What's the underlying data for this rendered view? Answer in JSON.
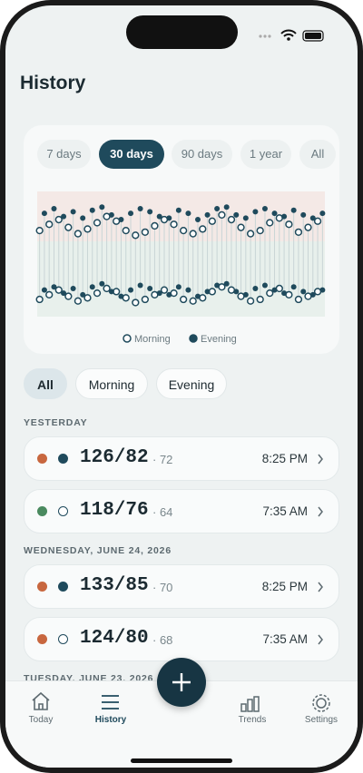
{
  "header": {
    "title": "History"
  },
  "range_tabs": {
    "items": [
      "7 days",
      "30 days",
      "90 days",
      "1 year",
      "All"
    ],
    "selected": 1
  },
  "chart_data": {
    "type": "dot-range",
    "ylim": [
      65,
      145
    ],
    "series": [
      {
        "name": "Morning",
        "color": "#1f4a5c",
        "fill": "hollow",
        "systolic": [
          120,
          124,
          127,
          122,
          118,
          121,
          125,
          129,
          126,
          120,
          117,
          119,
          123,
          127,
          124,
          120,
          118,
          121,
          126,
          130,
          127,
          122,
          118,
          120,
          125,
          128,
          124,
          119,
          122,
          126
        ],
        "diastolic": [
          76,
          79,
          82,
          78,
          75,
          77,
          80,
          83,
          81,
          77,
          74,
          76,
          79,
          82,
          80,
          76,
          75,
          77,
          81,
          84,
          82,
          78,
          75,
          76,
          80,
          83,
          79,
          76,
          78,
          81
        ]
      },
      {
        "name": "Evening",
        "color": "#1f4a5c",
        "fill": "solid",
        "systolic": [
          131,
          134,
          129,
          132,
          128,
          133,
          135,
          130,
          127,
          131,
          134,
          132,
          129,
          128,
          133,
          131,
          127,
          130,
          134,
          135,
          130,
          128,
          132,
          134,
          131,
          129,
          133,
          130,
          128,
          131
        ],
        "diastolic": [
          82,
          84,
          80,
          83,
          79,
          84,
          86,
          81,
          78,
          82,
          85,
          83,
          80,
          79,
          84,
          82,
          78,
          81,
          85,
          86,
          81,
          79,
          83,
          85,
          82,
          80,
          84,
          81,
          79,
          82
        ]
      }
    ]
  },
  "filters": {
    "items": [
      "All",
      "Morning",
      "Evening"
    ],
    "selected": 0
  },
  "sections": [
    {
      "title": "YESTERDAY",
      "entries": [
        {
          "status": "#c8673f",
          "period": "evening",
          "reading": "126/82",
          "pulse": "· 72",
          "time": "8:25 PM"
        },
        {
          "status": "#4a8a5f",
          "period": "morning",
          "reading": "118/76",
          "pulse": "· 64",
          "time": "7:35 AM"
        }
      ]
    },
    {
      "title": "WEDNESDAY, JUNE 24, 2026",
      "entries": [
        {
          "status": "#c8673f",
          "period": "evening",
          "reading": "133/85",
          "pulse": "· 70",
          "time": "8:25 PM"
        },
        {
          "status": "#c8673f",
          "period": "morning",
          "reading": "124/80",
          "pulse": "· 68",
          "time": "7:35 AM"
        }
      ]
    },
    {
      "title": "TUESDAY, JUNE 23, 2026",
      "entries": []
    }
  ],
  "nav": {
    "items": [
      "Today",
      "History",
      "Trends",
      "Settings"
    ],
    "selected": 1
  }
}
